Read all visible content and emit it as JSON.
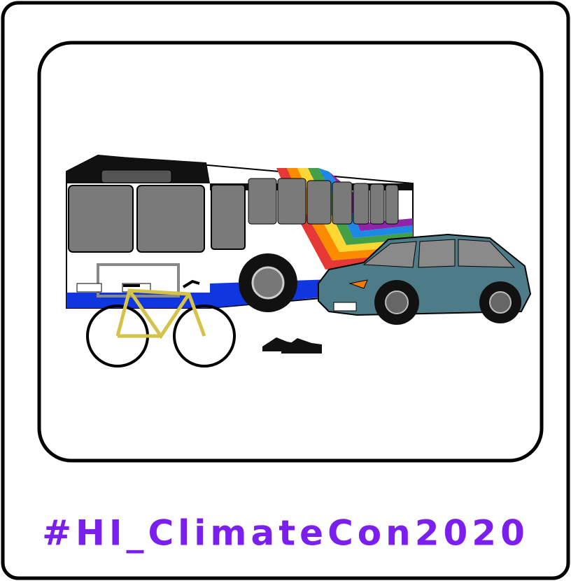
{
  "hashtag": "#HI_ClimateCon2020"
}
